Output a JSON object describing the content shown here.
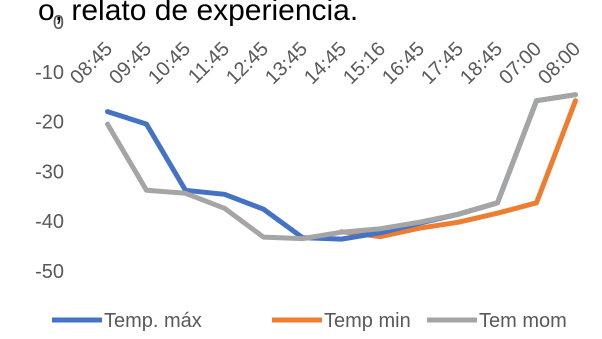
{
  "chart_data": {
    "type": "line",
    "title": "o, relato de experiencia.",
    "xlabel": "",
    "ylabel": "",
    "ylim": [
      -50,
      0
    ],
    "yticks": [
      0,
      -10,
      -20,
      -30,
      -40,
      -50
    ],
    "grid": false,
    "legend_position": "bottom",
    "x": [
      "08:45",
      "09:45",
      "10:45",
      "11:45",
      "12:45",
      "13:45",
      "14:45",
      "15:16",
      "16:45",
      "17:45",
      "18:45",
      "07:00",
      "08:00"
    ],
    "series": [
      {
        "name": "Temp. máx",
        "color": "#4472C4",
        "values": [
          -18.0,
          -20.5,
          -33.8,
          -34.6,
          -37.6,
          -43.3,
          -43.6,
          -42.3,
          -40.4,
          -38.6,
          -36.3,
          -15.8,
          -14.6
        ]
      },
      {
        "name": "Temp min",
        "color": "#ED7D31",
        "values": [
          null,
          null,
          null,
          null,
          null,
          null,
          -42.1,
          -43.1,
          -41.4,
          -40.2,
          -38.4,
          -36.3,
          -15.8
        ]
      },
      {
        "name": "Tem mom",
        "color": "#A5A5A5",
        "values": [
          -20.5,
          -33.8,
          -34.4,
          -37.4,
          -43.2,
          -43.5,
          -42.2,
          -41.5,
          -40.2,
          -38.6,
          -36.3,
          -15.8,
          -14.6
        ]
      }
    ]
  }
}
